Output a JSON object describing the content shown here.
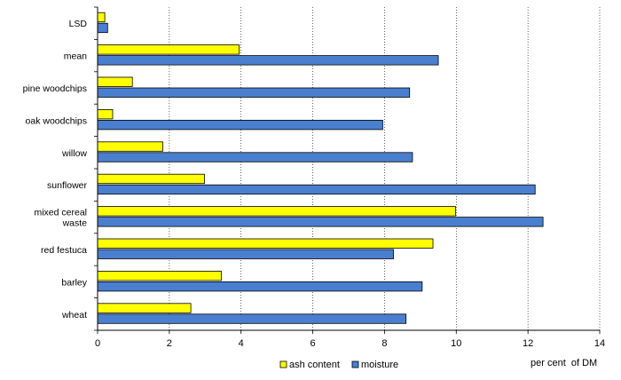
{
  "chart_data": {
    "type": "bar",
    "orientation": "horizontal",
    "categories": [
      "LSD",
      "mean",
      "pine woodchips",
      "oak woodchips",
      "willow",
      "sunflower",
      "mixed cereal waste",
      "red festuca",
      "barley",
      "wheat"
    ],
    "category_display": [
      [
        "LSD"
      ],
      [
        "mean"
      ],
      [
        "pine woodchips"
      ],
      [
        "oak woodchips"
      ],
      [
        "willow"
      ],
      [
        "sunflower"
      ],
      [
        "mixed cereal",
        "waste"
      ],
      [
        "red festuca"
      ],
      [
        "barley"
      ],
      [
        "wheat"
      ]
    ],
    "series": [
      {
        "name": "ash content",
        "color": "#ffff00",
        "values": [
          0.2,
          3.95,
          0.97,
          0.42,
          1.82,
          2.98,
          9.98,
          9.35,
          3.45,
          2.6
        ]
      },
      {
        "name": "moisture",
        "color": "#4a7fd0",
        "values": [
          0.28,
          9.5,
          8.7,
          7.95,
          8.78,
          12.2,
          12.42,
          8.25,
          9.05,
          8.6
        ]
      }
    ],
    "xlim": [
      0,
      14
    ],
    "ticks": [
      "0",
      "2",
      "4",
      "6",
      "8",
      "10",
      "12",
      "14"
    ],
    "xlabel": "per cent  of DM",
    "ylabel": "",
    "grid": "vertical dotted",
    "legend_position": "bottom"
  }
}
